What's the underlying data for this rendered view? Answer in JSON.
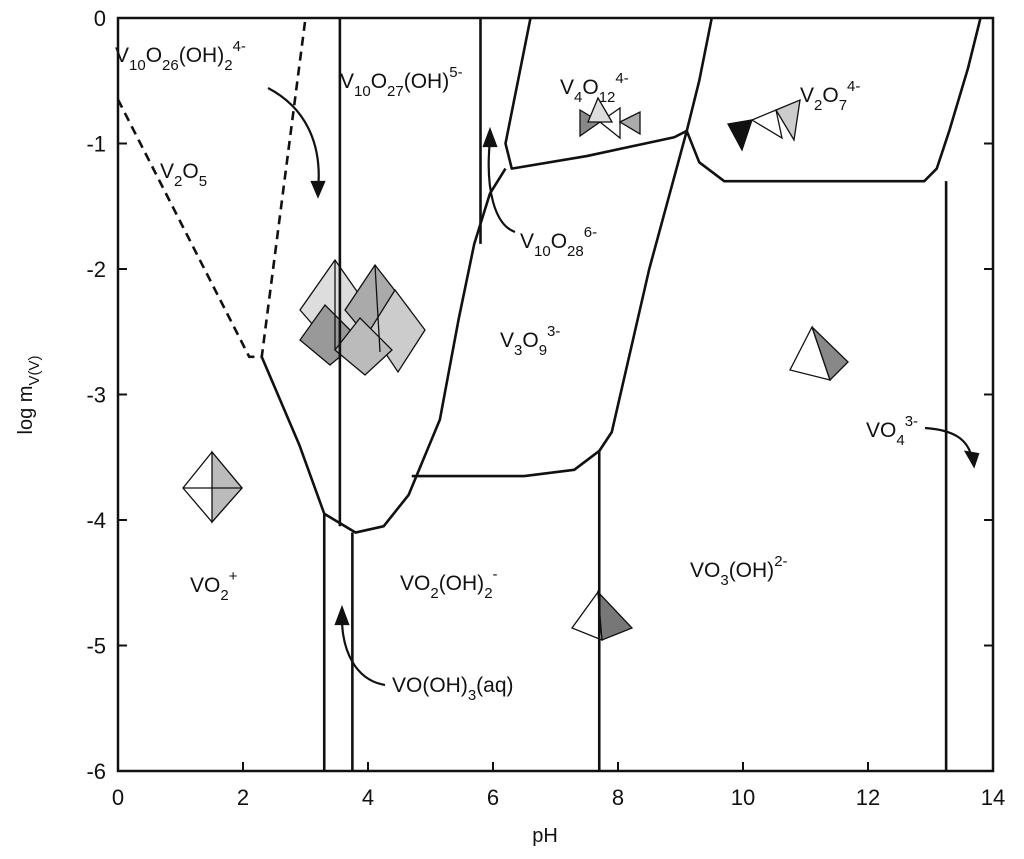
{
  "chart_data": {
    "type": "line",
    "x_label": "pH",
    "y_label": {
      "main": "log m",
      "subscript": "V(V)"
    },
    "xlim": [
      0,
      14
    ],
    "ylim": [
      -6,
      0
    ],
    "xticks": [
      0,
      2,
      4,
      6,
      8,
      10,
      12,
      14
    ],
    "yticks": [
      0,
      -1,
      -2,
      -3,
      -4,
      -5,
      -6
    ],
    "series": [
      {
        "color": "#111111",
        "dashed": true,
        "x": [
          0,
          2.1,
          2.3,
          3.0
        ],
        "values": [
          -0.65,
          -2.7,
          -2.7,
          0
        ]
      },
      {
        "color": "#111111",
        "dashed": false,
        "x": [
          2.3,
          2.9,
          3.3,
          3.8,
          4.25,
          4.65,
          5.15,
          5.45,
          5.7,
          5.95,
          6.2
        ],
        "values": [
          -2.7,
          -3.4,
          -3.95,
          -4.1,
          -4.05,
          -3.8,
          -3.2,
          -2.4,
          -1.8,
          -1.4,
          -1.2
        ]
      },
      {
        "color": "#111111",
        "dashed": false,
        "x": [
          6.6,
          6.4,
          6.2,
          6.3,
          7.5,
          8.9,
          9.1
        ],
        "values": [
          0,
          -0.5,
          -1.0,
          -1.2,
          -1.1,
          -0.95,
          -0.9
        ]
      },
      {
        "color": "#111111",
        "dashed": false,
        "x": [
          9.1,
          9.3,
          9.5
        ],
        "values": [
          -0.9,
          -0.5,
          0
        ]
      },
      {
        "color": "#111111",
        "dashed": false,
        "x": [
          9.1,
          9.3,
          9.7,
          11,
          12.9,
          13.1,
          13.3,
          13.6,
          13.8
        ],
        "values": [
          -0.9,
          -1.15,
          -1.3,
          -1.3,
          -1.3,
          -1.2,
          -0.9,
          -0.4,
          0
        ]
      },
      {
        "color": "#111111",
        "dashed": false,
        "x": [
          9.1,
          8.5,
          7.9,
          7.7,
          7.3,
          6.5,
          4.7
        ],
        "values": [
          -0.9,
          -2.0,
          -3.3,
          -3.45,
          -3.6,
          -3.65,
          -3.65
        ]
      },
      {
        "color": "#111111",
        "dashed": false,
        "x": [
          3.3,
          3.3
        ],
        "values": [
          -3.95,
          -6
        ]
      },
      {
        "color": "#111111",
        "dashed": false,
        "x": [
          3.75,
          3.75
        ],
        "values": [
          -4.1,
          -6
        ]
      },
      {
        "color": "#111111",
        "dashed": false,
        "x": [
          3.55,
          3.55
        ],
        "values": [
          0,
          -4.05
        ]
      },
      {
        "color": "#111111",
        "dashed": false,
        "x": [
          5.8,
          5.8
        ],
        "values": [
          0,
          -1.8
        ]
      },
      {
        "color": "#111111",
        "dashed": false,
        "x": [
          7.7,
          7.7
        ],
        "values": [
          -3.45,
          -6
        ]
      },
      {
        "color": "#111111",
        "dashed": false,
        "x": [
          13.25,
          13.25
        ],
        "values": [
          -1.3,
          -6
        ]
      }
    ],
    "annotations": [
      {
        "parts": [
          {
            "text": "V"
          },
          {
            "text": "10",
            "shift": "sub"
          },
          {
            "text": "O"
          },
          {
            "text": "26",
            "shift": "sub"
          },
          {
            "text": "(OH)"
          },
          {
            "text": "2",
            "shift": "sub"
          },
          {
            "text": "4-",
            "shift": "sup"
          }
        ]
      },
      {
        "parts": [
          {
            "text": "V"
          },
          {
            "text": "10",
            "shift": "sub"
          },
          {
            "text": "O"
          },
          {
            "text": "27",
            "shift": "sub"
          },
          {
            "text": "(OH)"
          },
          {
            "text": "5-",
            "shift": "sup"
          }
        ]
      },
      {
        "parts": [
          {
            "text": "V"
          },
          {
            "text": "4",
            "shift": "sub"
          },
          {
            "text": "O"
          },
          {
            "text": "12",
            "shift": "sub"
          },
          {
            "text": "4-",
            "shift": "sup"
          }
        ]
      },
      {
        "parts": [
          {
            "text": "V"
          },
          {
            "text": "2",
            "shift": "sub"
          },
          {
            "text": "O"
          },
          {
            "text": "7",
            "shift": "sub"
          },
          {
            "text": "4-",
            "shift": "sup"
          }
        ]
      },
      {
        "parts": [
          {
            "text": "V"
          },
          {
            "text": "2",
            "shift": "sub"
          },
          {
            "text": "O"
          },
          {
            "text": "5",
            "shift": "sub"
          }
        ]
      },
      {
        "parts": [
          {
            "text": "V"
          },
          {
            "text": "10",
            "shift": "sub"
          },
          {
            "text": "O"
          },
          {
            "text": "28",
            "shift": "sub"
          },
          {
            "text": "6-",
            "shift": "sup"
          }
        ]
      },
      {
        "parts": [
          {
            "text": "V"
          },
          {
            "text": "3",
            "shift": "sub"
          },
          {
            "text": "O"
          },
          {
            "text": "9",
            "shift": "sub"
          },
          {
            "text": "3-",
            "shift": "sup"
          }
        ]
      },
      {
        "parts": [
          {
            "text": "VO"
          },
          {
            "text": "4",
            "shift": "sub"
          },
          {
            "text": "3-",
            "shift": "sup"
          }
        ]
      },
      {
        "parts": [
          {
            "text": "VO"
          },
          {
            "text": "2",
            "shift": "sub"
          },
          {
            "text": "+",
            "shift": "sup"
          }
        ]
      },
      {
        "parts": [
          {
            "text": "VO"
          },
          {
            "text": "2",
            "shift": "sub"
          },
          {
            "text": "(OH)"
          },
          {
            "text": "2",
            "shift": "sub"
          },
          {
            "text": "-",
            "shift": "sup"
          }
        ]
      },
      {
        "parts": [
          {
            "text": "VO"
          },
          {
            "text": "3",
            "shift": "sub"
          },
          {
            "text": "(OH)"
          },
          {
            "text": "2-",
            "shift": "sup"
          }
        ]
      },
      {
        "parts": [
          {
            "text": "VO(OH)"
          },
          {
            "text": "3",
            "shift": "sub"
          },
          {
            "text": "(aq)"
          }
        ]
      }
    ]
  }
}
